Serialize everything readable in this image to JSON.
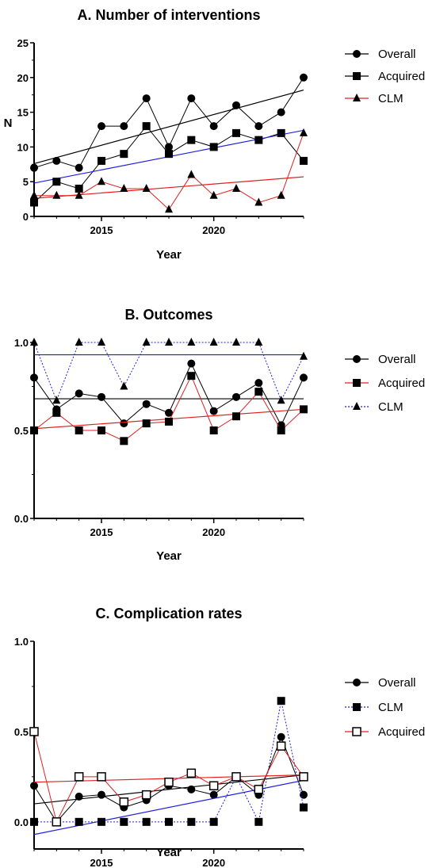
{
  "colors": {
    "overall": "#000000",
    "acquired": "#1f1fe0",
    "clm": "#e02020",
    "black": "#000000"
  },
  "chart_data": [
    {
      "type": "line",
      "title": "A. Number of interventions",
      "xlabel": "Year",
      "ylabel": "N",
      "xlim": [
        2012,
        2024
      ],
      "ylim": [
        0,
        25
      ],
      "xticks": [
        2015,
        2020
      ],
      "yticks": [
        0,
        5,
        10,
        15,
        20,
        25
      ],
      "x": [
        2012,
        2013,
        2014,
        2015,
        2016,
        2017,
        2018,
        2019,
        2020,
        2021,
        2022,
        2023,
        2024
      ],
      "legend_position": "right",
      "series": [
        {
          "name": "Overall",
          "marker": "circle",
          "color": "#000000",
          "values": [
            7,
            8,
            7,
            13,
            13,
            17,
            10,
            17,
            13,
            16,
            13,
            15,
            20
          ],
          "trend": [
            7.6,
            18.2
          ]
        },
        {
          "name": "Acquired",
          "marker": "square",
          "color": "#1f1fe0",
          "line_color": "#000000",
          "trend_color": "#1f1fe0",
          "values": [
            2,
            5,
            4,
            8,
            9,
            13,
            9,
            11,
            10,
            12,
            11,
            12,
            8
          ],
          "trend": [
            4.8,
            12.4
          ]
        },
        {
          "name": "CLM",
          "marker": "triangle",
          "color": "#e02020",
          "line_color": "#e02020",
          "trend_color": "#e02020",
          "values": [
            3,
            3,
            3,
            5,
            4,
            4,
            1,
            6,
            3,
            4,
            2,
            3,
            12
          ],
          "trend": [
            2.6,
            5.7
          ]
        }
      ]
    },
    {
      "type": "line",
      "title": "B. Outcomes",
      "xlabel": "Year",
      "ylabel": "",
      "xlim": [
        2012,
        2024
      ],
      "ylim": [
        0,
        1
      ],
      "xticks": [
        2015,
        2020
      ],
      "yticks": [
        0,
        0.5,
        1
      ],
      "ytick_labels": [
        "0.0",
        "0.5",
        "1.0"
      ],
      "x": [
        2012,
        2013,
        2014,
        2015,
        2016,
        2017,
        2018,
        2019,
        2020,
        2021,
        2022,
        2023,
        2024
      ],
      "legend_position": "right",
      "series": [
        {
          "name": "Overall",
          "marker": "circle",
          "color": "#000000",
          "values": [
            0.8,
            0.62,
            0.71,
            0.69,
            0.54,
            0.65,
            0.6,
            0.88,
            0.61,
            0.69,
            0.77,
            0.53,
            0.8
          ],
          "trend": [
            0.68,
            0.68
          ]
        },
        {
          "name": "Acquired",
          "marker": "square",
          "color": "#e02020",
          "line_color": "#e02020",
          "trend_color": "#e02020",
          "values": [
            0.5,
            0.6,
            0.5,
            0.5,
            0.44,
            0.54,
            0.55,
            0.81,
            0.5,
            0.58,
            0.72,
            0.5,
            0.62
          ],
          "trend": [
            0.51,
            0.62
          ]
        },
        {
          "name": "CLM",
          "marker": "triangle",
          "color": "#1f1fe0",
          "line_style": "dotted",
          "trend_color": "#1f1fe0",
          "values": [
            1.0,
            0.67,
            1.0,
            1.0,
            0.75,
            1.0,
            1.0,
            1.0,
            1.0,
            1.0,
            1.0,
            0.67,
            0.92
          ],
          "trend": [
            0.93,
            0.93
          ]
        }
      ]
    },
    {
      "type": "line",
      "title": "C. Complication rates",
      "xlabel": "Year",
      "ylabel": "",
      "xlim": [
        2012,
        2024
      ],
      "ylim": [
        -0.15,
        1
      ],
      "xticks": [
        2015,
        2020
      ],
      "yticks": [
        0,
        0.5,
        1
      ],
      "ytick_labels": [
        "0.0",
        "0.5",
        "1.0"
      ],
      "x": [
        2012,
        2013,
        2014,
        2015,
        2016,
        2017,
        2018,
        2019,
        2020,
        2021,
        2022,
        2023,
        2024
      ],
      "legend_position": "right",
      "series": [
        {
          "name": "Overall",
          "marker": "circle",
          "color": "#000000",
          "values": [
            0.2,
            0.0,
            0.14,
            0.15,
            0.08,
            0.12,
            0.2,
            0.18,
            0.15,
            0.25,
            0.15,
            0.47,
            0.15
          ],
          "trend": [
            0.1,
            0.26
          ]
        },
        {
          "name": "CLM",
          "marker": "square",
          "color": "#1f1fe0",
          "line_style": "dotted",
          "trend_color": "#1f1fe0",
          "values": [
            0.0,
            0.0,
            0.0,
            0.0,
            0.0,
            0.0,
            0.0,
            0.0,
            0.0,
            0.25,
            0.0,
            0.67,
            0.08
          ],
          "trend": [
            -0.07,
            0.23
          ]
        },
        {
          "name": "Acquired",
          "marker": "square-open",
          "color": "#e02020",
          "line_color": "#e02020",
          "trend_color": "#e02020",
          "values": [
            0.5,
            0.0,
            0.25,
            0.25,
            0.11,
            0.15,
            0.22,
            0.27,
            0.2,
            0.25,
            0.18,
            0.42,
            0.25
          ],
          "trend": [
            0.22,
            0.26
          ]
        }
      ]
    }
  ]
}
